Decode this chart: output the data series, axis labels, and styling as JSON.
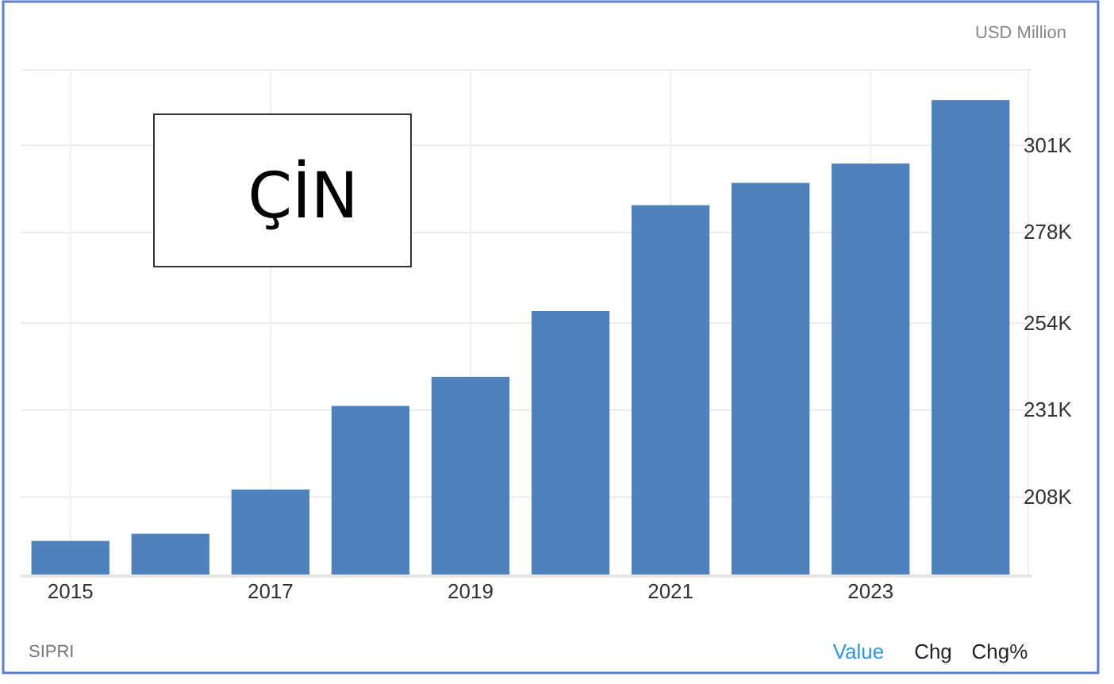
{
  "chart_data": {
    "type": "bar",
    "title": "ÇİN",
    "ylabel": "USD Million",
    "categories": [
      "2015",
      null,
      "2017",
      null,
      "2019",
      null,
      "2021",
      null,
      "2023",
      null
    ],
    "values": [
      196400,
      198300,
      210000,
      232100,
      239800,
      257200,
      285200,
      291100,
      296200,
      313000
    ],
    "color": "#4f81bd",
    "ylim": [
      187100,
      321000
    ],
    "yticks": [
      {
        "value": 208000,
        "label": "208K"
      },
      {
        "value": 231000,
        "label": "231K"
      },
      {
        "value": 254000,
        "label": "254K"
      },
      {
        "value": 278000,
        "label": "278K"
      },
      {
        "value": 301000,
        "label": "301K"
      }
    ],
    "grid": true,
    "annotations": [
      "SIPRI",
      "Value",
      "Chg",
      "Chg%"
    ]
  }
}
